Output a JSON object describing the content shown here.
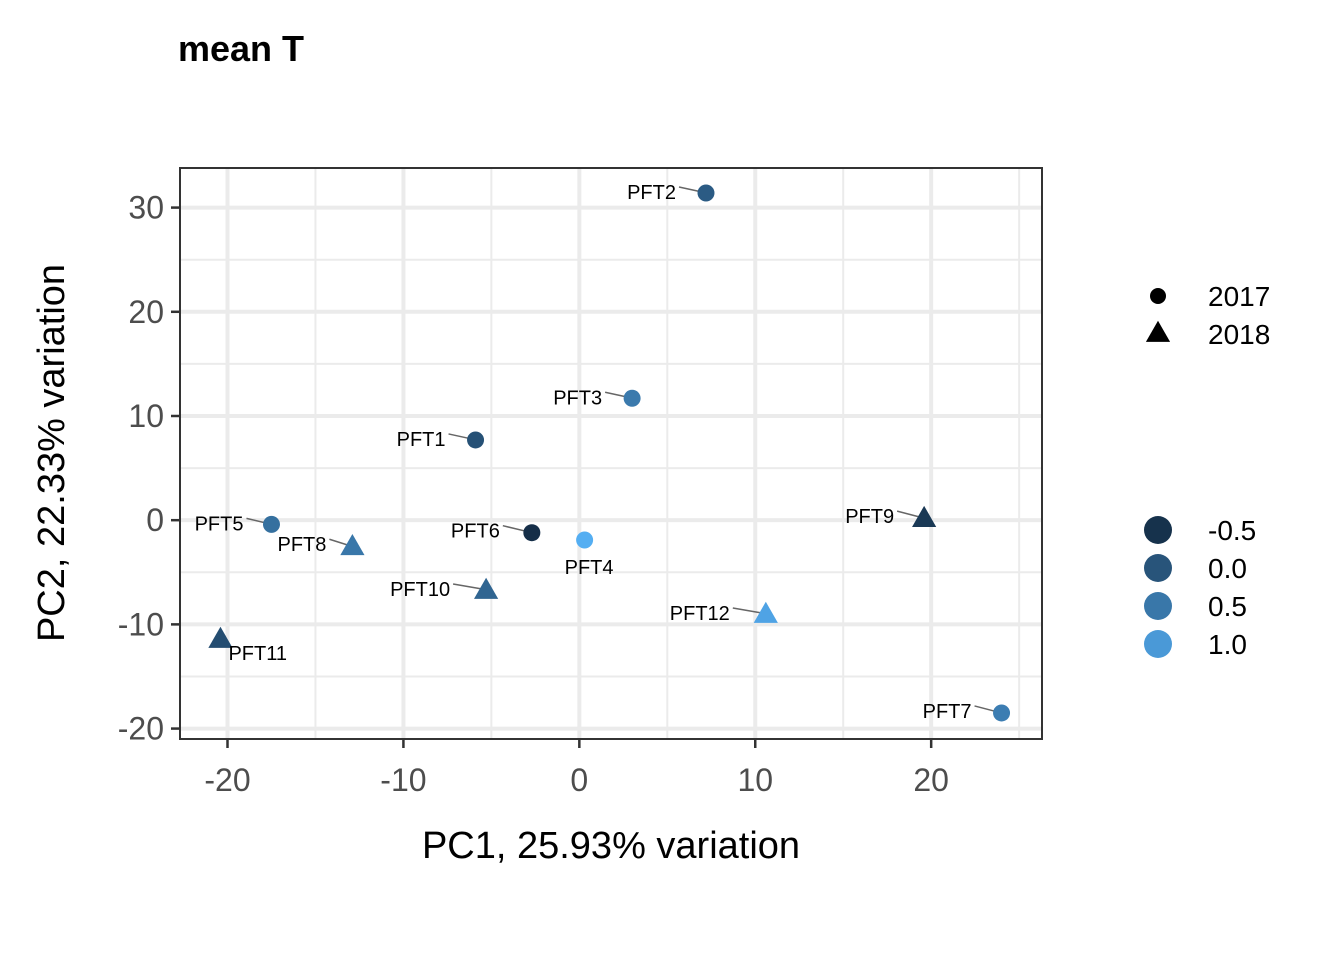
{
  "chart_data": {
    "type": "scatter",
    "title": "mean T",
    "xlabel": "PC1, 25.93% variation",
    "ylabel": "PC2, 22.33% variation",
    "xlim": [
      -22.7,
      26.3
    ],
    "ylim": [
      -21.0,
      33.8
    ],
    "xticks": [
      -20,
      -10,
      0,
      10,
      20
    ],
    "yticks": [
      -20,
      -10,
      0,
      10,
      20,
      30
    ],
    "grid": true,
    "points": [
      {
        "label": "PFT1",
        "x": -5.9,
        "y": 7.7,
        "year": "2017",
        "value": -0.05
      },
      {
        "label": "PFT2",
        "x": 7.2,
        "y": 31.4,
        "year": "2017",
        "value": 0.1
      },
      {
        "label": "PFT3",
        "x": 3.0,
        "y": 11.7,
        "year": "2017",
        "value": 0.55
      },
      {
        "label": "PFT4",
        "x": 0.3,
        "y": -1.9,
        "year": "2017",
        "value": 1.3
      },
      {
        "label": "PFT5",
        "x": -17.5,
        "y": -0.4,
        "year": "2017",
        "value": 0.4
      },
      {
        "label": "PFT6",
        "x": -2.7,
        "y": -1.2,
        "year": "2017",
        "value": -0.55
      },
      {
        "label": "PFT7",
        "x": 24.0,
        "y": -18.5,
        "year": "2017",
        "value": 0.6
      },
      {
        "label": "PFT8",
        "x": -12.9,
        "y": -2.5,
        "year": "2018",
        "value": 0.5
      },
      {
        "label": "PFT9",
        "x": 19.6,
        "y": 0.2,
        "year": "2018",
        "value": -0.4
      },
      {
        "label": "PFT10",
        "x": -5.3,
        "y": -6.7,
        "year": "2018",
        "value": 0.25
      },
      {
        "label": "PFT11",
        "x": -20.4,
        "y": -11.4,
        "year": "2018",
        "value": -0.1
      },
      {
        "label": "PFT12",
        "x": 10.6,
        "y": -9.0,
        "year": "2018",
        "value": 1.15
      }
    ],
    "legend_shape": [
      {
        "label": "2017",
        "shape": "circle"
      },
      {
        "label": "2018",
        "shape": "triangle"
      }
    ],
    "legend_color": [
      {
        "label": "-0.5",
        "value": -0.5
      },
      {
        "label": "0.0",
        "value": 0.0
      },
      {
        "label": "0.5",
        "value": 0.5
      },
      {
        "label": "1.0",
        "value": 1.0
      }
    ],
    "color_scale": {
      "low": "#132B43",
      "high": "#56B1F7",
      "min": -0.6,
      "max": 1.35
    }
  }
}
